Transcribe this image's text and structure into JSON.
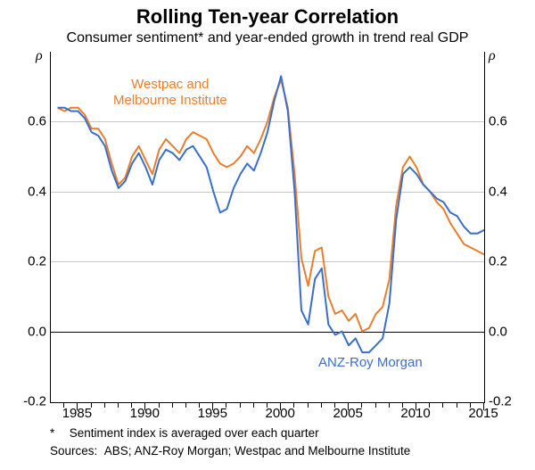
{
  "chart": {
    "type": "line",
    "title": "Rolling Ten-year Correlation",
    "subtitle": "Consumer sentiment* and year-ended growth in trend real GDP",
    "ylabel_left": "ρ",
    "ylabel_right": "ρ",
    "ylim": [
      -0.2,
      0.8
    ],
    "yticks": [
      -0.2,
      0.0,
      0.2,
      0.4,
      0.6
    ],
    "ytick_labels": [
      "-0.2",
      "0.0",
      "0.2",
      "0.4",
      "0.6"
    ],
    "xlim": [
      1983,
      2015
    ],
    "xticks": [
      1985,
      1990,
      1995,
      2000,
      2005,
      2010,
      2015
    ],
    "xtick_labels": [
      "1985",
      "1990",
      "1995",
      "2000",
      "2005",
      "2010",
      "2015"
    ],
    "minor_xticks": [
      1984,
      1986,
      1987,
      1988,
      1989,
      1991,
      1992,
      1993,
      1994,
      1996,
      1997,
      1998,
      1999,
      2001,
      2002,
      2003,
      2004,
      2006,
      2007,
      2008,
      2009,
      2011,
      2012,
      2013,
      2014
    ],
    "background_color": "#ffffff",
    "grid_color": "#c7c7c3",
    "axis_color": "#000000",
    "series": [
      {
        "name": "Westpac and Melbourne Institute",
        "label": "Westpac and\nMelbourne Institute",
        "color": "#e97e2e",
        "line_width": 2,
        "data": [
          [
            1983.5,
            0.64
          ],
          [
            1984,
            0.63
          ],
          [
            1984.5,
            0.64
          ],
          [
            1985,
            0.64
          ],
          [
            1985.5,
            0.62
          ],
          [
            1986,
            0.58
          ],
          [
            1986.5,
            0.58
          ],
          [
            1987,
            0.55
          ],
          [
            1987.5,
            0.48
          ],
          [
            1988,
            0.42
          ],
          [
            1988.5,
            0.44
          ],
          [
            1989,
            0.5
          ],
          [
            1989.5,
            0.53
          ],
          [
            1990,
            0.49
          ],
          [
            1990.5,
            0.45
          ],
          [
            1991,
            0.52
          ],
          [
            1991.5,
            0.55
          ],
          [
            1992,
            0.53
          ],
          [
            1992.5,
            0.51
          ],
          [
            1993,
            0.55
          ],
          [
            1993.5,
            0.57
          ],
          [
            1994,
            0.56
          ],
          [
            1994.5,
            0.55
          ],
          [
            1995,
            0.51
          ],
          [
            1995.5,
            0.48
          ],
          [
            1996,
            0.47
          ],
          [
            1996.5,
            0.48
          ],
          [
            1997,
            0.5
          ],
          [
            1997.5,
            0.53
          ],
          [
            1998,
            0.51
          ],
          [
            1998.5,
            0.55
          ],
          [
            1999,
            0.6
          ],
          [
            1999.5,
            0.67
          ],
          [
            2000,
            0.72
          ],
          [
            2000.5,
            0.64
          ],
          [
            2001,
            0.45
          ],
          [
            2001.5,
            0.21
          ],
          [
            2002,
            0.13
          ],
          [
            2002.5,
            0.23
          ],
          [
            2003,
            0.24
          ],
          [
            2003.5,
            0.1
          ],
          [
            2004,
            0.05
          ],
          [
            2004.5,
            0.06
          ],
          [
            2005,
            0.03
          ],
          [
            2005.5,
            0.05
          ],
          [
            2006,
            0.0
          ],
          [
            2006.5,
            0.01
          ],
          [
            2007,
            0.05
          ],
          [
            2007.5,
            0.07
          ],
          [
            2008,
            0.15
          ],
          [
            2008.5,
            0.36
          ],
          [
            2009,
            0.47
          ],
          [
            2009.5,
            0.5
          ],
          [
            2010,
            0.47
          ],
          [
            2010.5,
            0.42
          ],
          [
            2011,
            0.4
          ],
          [
            2011.5,
            0.37
          ],
          [
            2012,
            0.35
          ],
          [
            2012.5,
            0.31
          ],
          [
            2013,
            0.28
          ],
          [
            2013.5,
            0.25
          ],
          [
            2014,
            0.24
          ],
          [
            2014.5,
            0.23
          ],
          [
            2015,
            0.22
          ]
        ]
      },
      {
        "name": "ANZ-Roy Morgan",
        "label": "ANZ-Roy Morgan",
        "color": "#3a6fc9",
        "line_width": 2,
        "data": [
          [
            1983.5,
            0.64
          ],
          [
            1984,
            0.64
          ],
          [
            1984.5,
            0.63
          ],
          [
            1985,
            0.63
          ],
          [
            1985.5,
            0.61
          ],
          [
            1986,
            0.57
          ],
          [
            1986.5,
            0.56
          ],
          [
            1987,
            0.53
          ],
          [
            1987.5,
            0.46
          ],
          [
            1988,
            0.41
          ],
          [
            1988.5,
            0.43
          ],
          [
            1989,
            0.48
          ],
          [
            1989.5,
            0.51
          ],
          [
            1990,
            0.47
          ],
          [
            1990.5,
            0.42
          ],
          [
            1991,
            0.49
          ],
          [
            1991.5,
            0.52
          ],
          [
            1992,
            0.51
          ],
          [
            1992.5,
            0.49
          ],
          [
            1993,
            0.52
          ],
          [
            1993.5,
            0.53
          ],
          [
            1994,
            0.5
          ],
          [
            1994.5,
            0.47
          ],
          [
            1995,
            0.4
          ],
          [
            1995.5,
            0.34
          ],
          [
            1996,
            0.35
          ],
          [
            1996.5,
            0.41
          ],
          [
            1997,
            0.45
          ],
          [
            1997.5,
            0.48
          ],
          [
            1998,
            0.46
          ],
          [
            1998.5,
            0.51
          ],
          [
            1999,
            0.57
          ],
          [
            1999.5,
            0.66
          ],
          [
            2000,
            0.73
          ],
          [
            2000.5,
            0.63
          ],
          [
            2001,
            0.4
          ],
          [
            2001.5,
            0.06
          ],
          [
            2002,
            0.02
          ],
          [
            2002.5,
            0.15
          ],
          [
            2003,
            0.18
          ],
          [
            2003.5,
            0.02
          ],
          [
            2004,
            -0.01
          ],
          [
            2004.5,
            0.0
          ],
          [
            2005,
            -0.04
          ],
          [
            2005.5,
            -0.02
          ],
          [
            2006,
            -0.06
          ],
          [
            2006.5,
            -0.06
          ],
          [
            2007,
            -0.04
          ],
          [
            2007.5,
            -0.02
          ],
          [
            2008,
            0.08
          ],
          [
            2008.5,
            0.32
          ],
          [
            2009,
            0.45
          ],
          [
            2009.5,
            0.47
          ],
          [
            2010,
            0.45
          ],
          [
            2010.5,
            0.42
          ],
          [
            2011,
            0.4
          ],
          [
            2011.5,
            0.38
          ],
          [
            2012,
            0.37
          ],
          [
            2012.5,
            0.34
          ],
          [
            2013,
            0.33
          ],
          [
            2013.5,
            0.3
          ],
          [
            2014,
            0.28
          ],
          [
            2014.5,
            0.28
          ],
          [
            2015,
            0.29
          ]
        ]
      }
    ],
    "footnote_marker": "*",
    "footnote_text": "Sentiment index is averaged over each quarter",
    "sources_label": "Sources:",
    "sources_text": "ABS; ANZ-Roy Morgan; Westpac and Melbourne Institute"
  }
}
